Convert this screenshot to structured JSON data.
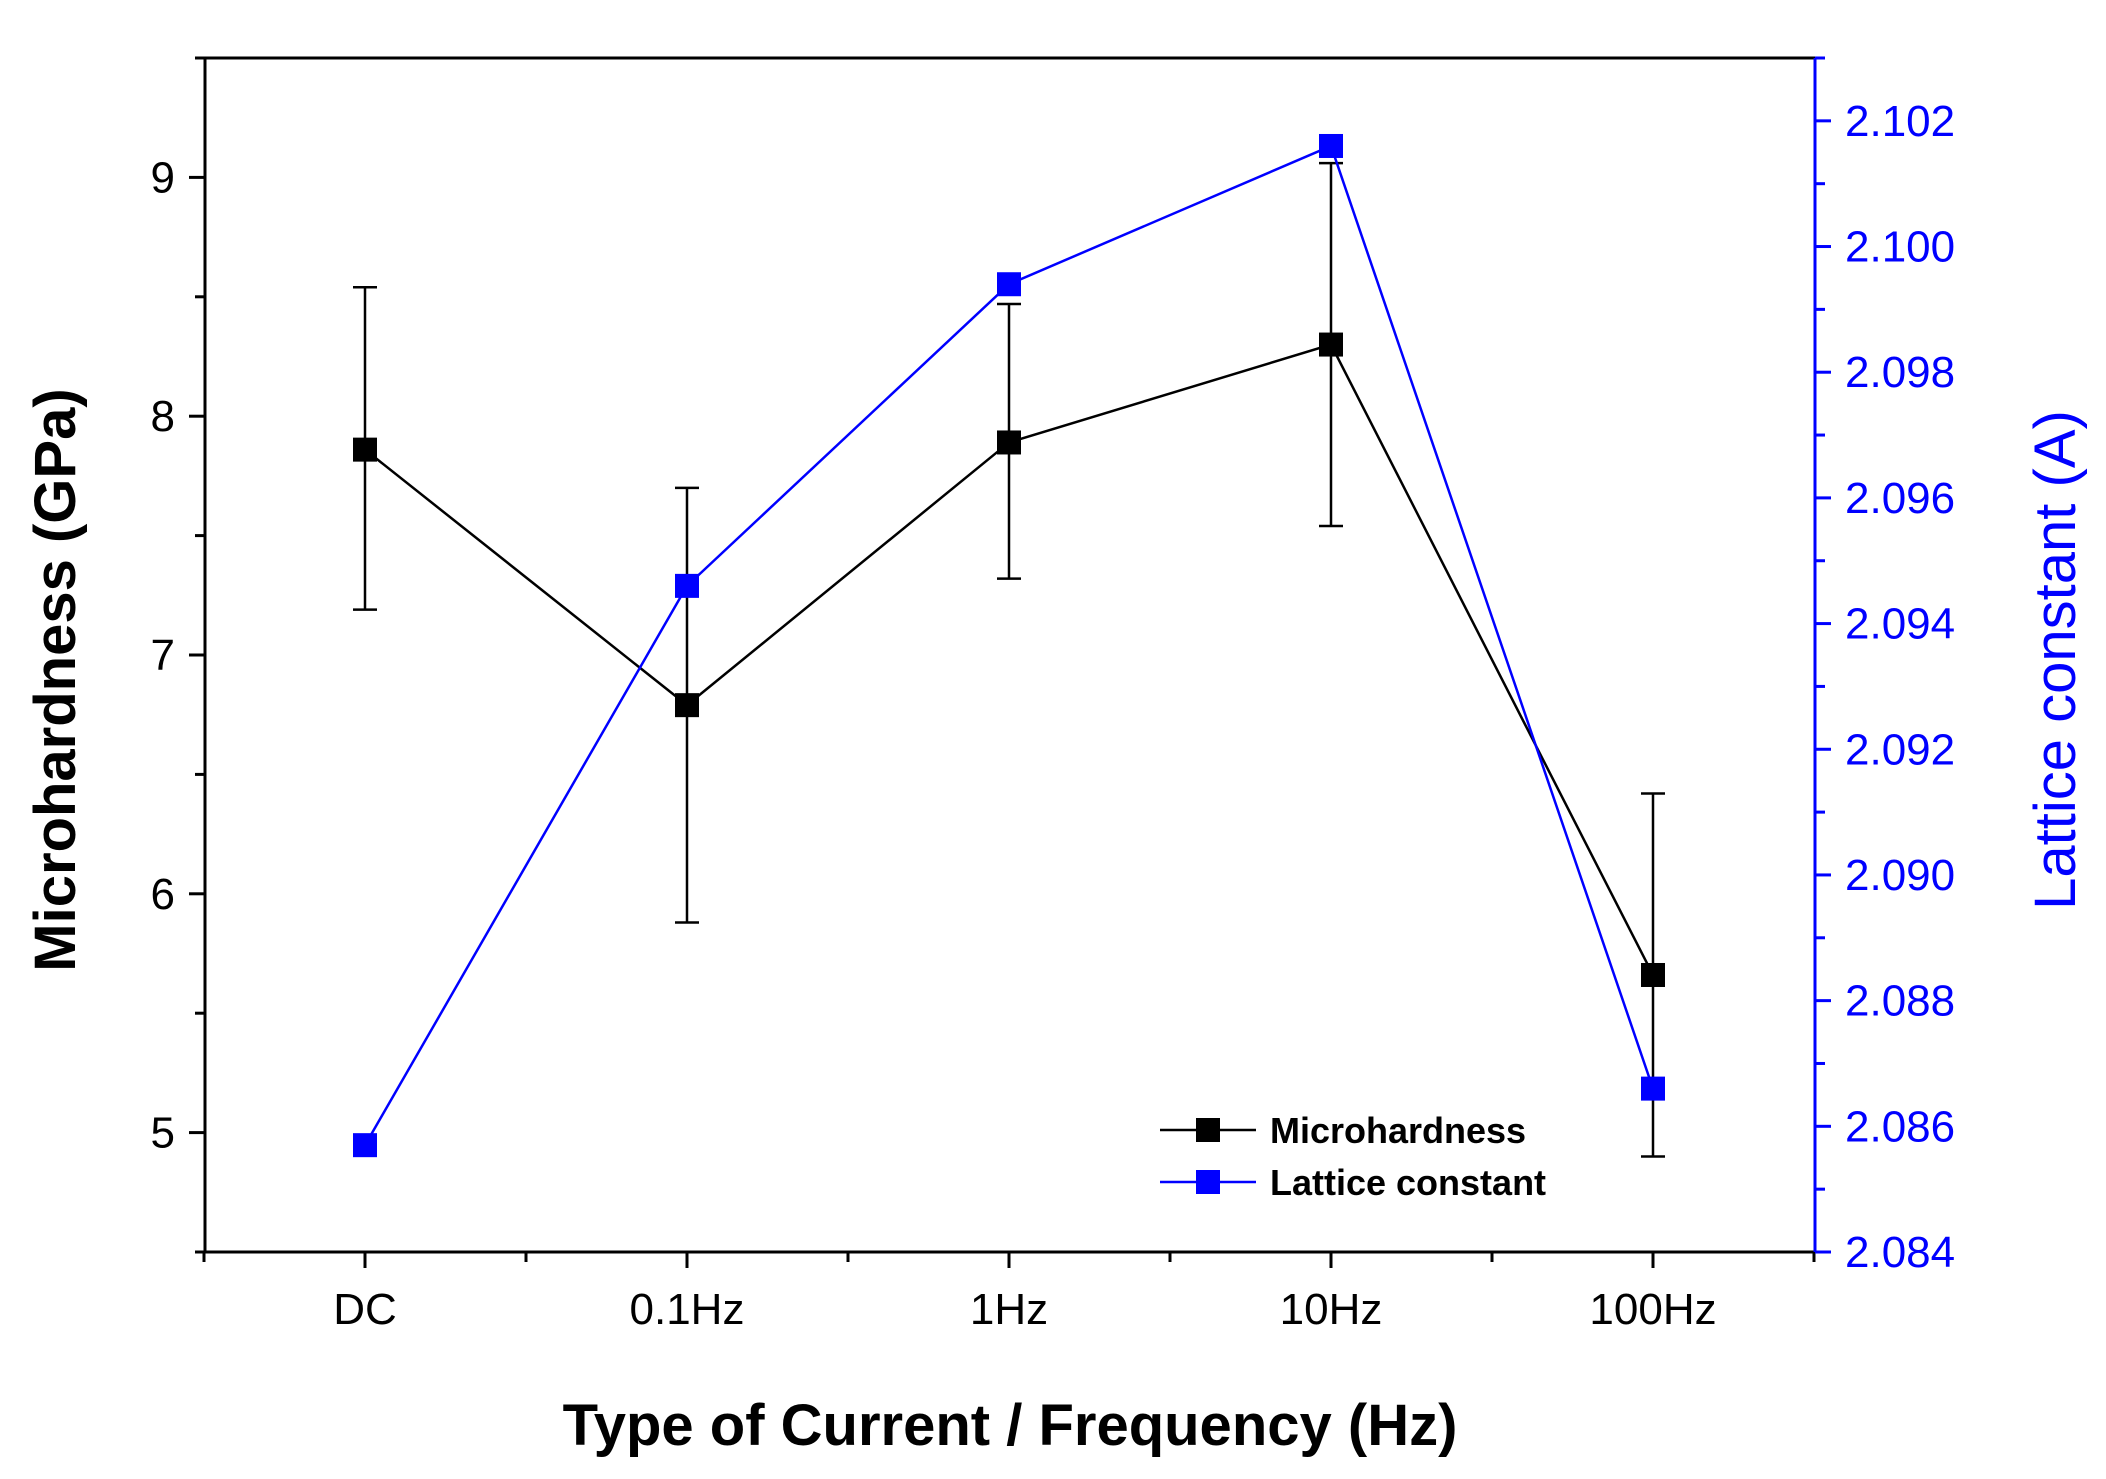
{
  "chart_data": {
    "type": "line",
    "title": "",
    "categories": [
      "DC",
      "0.1Hz",
      "1Hz",
      "10Hz",
      "100Hz"
    ],
    "xlabel": "Type of Current / Frequency (Hz)",
    "ylabel": "Microhardness (GPa)",
    "y2label": "Lattice constant (A)",
    "ylim": [
      4.5,
      9.5
    ],
    "y2lim": [
      2.084,
      2.103
    ],
    "yticks": [
      "5",
      "6",
      "7",
      "8",
      "9"
    ],
    "y2ticks": [
      "2.084",
      "2.086",
      "2.088",
      "2.090",
      "2.092",
      "2.094",
      "2.096",
      "2.098",
      "2.100",
      "2.102"
    ],
    "legend_position": "bottom-right",
    "grid": false,
    "series": [
      {
        "name": "Microhardness",
        "axis": "left",
        "color": "#000000",
        "values": [
          7.86,
          6.79,
          7.89,
          8.3,
          5.66
        ],
        "error_low": [
          7.19,
          5.88,
          7.32,
          7.54,
          4.9
        ],
        "error_high": [
          8.54,
          7.7,
          8.47,
          9.06,
          6.42
        ]
      },
      {
        "name": "Lattice constant",
        "axis": "right",
        "color": "#0000ff",
        "values": [
          2.0857,
          2.0946,
          2.0994,
          2.1016,
          2.0866
        ]
      }
    ]
  }
}
